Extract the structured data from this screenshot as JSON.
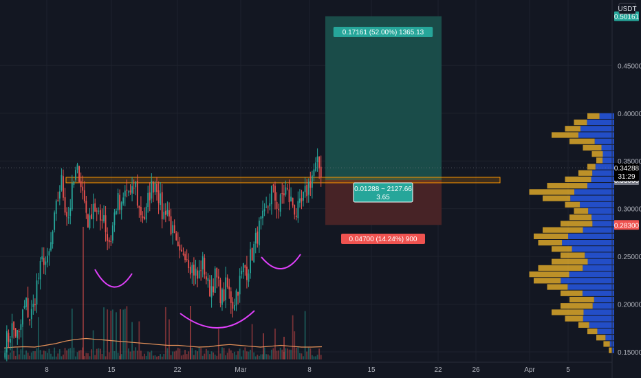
{
  "colors": {
    "background": "#131722",
    "grid": "#1e222d",
    "up": "#26a69a",
    "down": "#ef5350",
    "profit_zone": "#1a4f4c",
    "loss_zone": "#4a2427",
    "neckline": "#ff9800",
    "pattern": "#e040fb",
    "volume_ma": "#e8935a",
    "vp_up": "#2962ff",
    "vp_down": "#e9b02b",
    "price_tag": "#26a69a",
    "loss_tag": "#ef5350"
  },
  "header": {
    "currency": "USDT"
  },
  "chart_data": {
    "type": "candlestick",
    "title": "",
    "xlabel": "",
    "ylabel": "",
    "x_tick_labels": [
      "8",
      "15",
      "22",
      "Mar",
      "8",
      "15",
      "22",
      "26",
      "Apr",
      "5"
    ],
    "y_tick_labels": [
      "0.15000",
      "0.20000",
      "0.25000",
      "0.30000",
      "0.35000",
      "0.40000",
      "0.45000"
    ],
    "ylim": [
      0.14,
      0.53
    ],
    "grid": true,
    "close_path": [
      0.16,
      0.165,
      0.175,
      0.17,
      0.165,
      0.19,
      0.2,
      0.185,
      0.195,
      0.22,
      0.235,
      0.25,
      0.24,
      0.26,
      0.285,
      0.31,
      0.33,
      0.305,
      0.29,
      0.315,
      0.335,
      0.34,
      0.32,
      0.3,
      0.28,
      0.31,
      0.295,
      0.285,
      0.3,
      0.27,
      0.265,
      0.29,
      0.31,
      0.295,
      0.315,
      0.32,
      0.31,
      0.33,
      0.3,
      0.295,
      0.29,
      0.315,
      0.325,
      0.33,
      0.31,
      0.29,
      0.305,
      0.285,
      0.27,
      0.255,
      0.245,
      0.26,
      0.25,
      0.24,
      0.235,
      0.225,
      0.245,
      0.235,
      0.215,
      0.22,
      0.23,
      0.215,
      0.205,
      0.22,
      0.21,
      0.2,
      0.215,
      0.225,
      0.24,
      0.235,
      0.25,
      0.26,
      0.275,
      0.285,
      0.29,
      0.305,
      0.32,
      0.31,
      0.3,
      0.315,
      0.32,
      0.31,
      0.305,
      0.295,
      0.3,
      0.31,
      0.32,
      0.33,
      0.34,
      0.345,
      0.34
    ],
    "current_price": "0.34288",
    "countdown": "31:29",
    "target_price": "0.50161",
    "entry_price": "0.33000",
    "stop_price": "0.28300",
    "profit_label": "0.17161 (52.00%) 1365.13",
    "loss_label": "0.04700 (14.24%) 900",
    "center_label_line1": "0.01288 ~ 2127.66",
    "center_label_line2": "3.65",
    "neckline_price": 0.33,
    "volume_ma_path": [
      0.35,
      0.4,
      0.42,
      0.4,
      0.5,
      0.6,
      0.75,
      0.85,
      0.9,
      0.85,
      0.8,
      0.75,
      0.7,
      0.65,
      0.6,
      0.55,
      0.5,
      0.5,
      0.45,
      0.4,
      0.42,
      0.5,
      0.55,
      0.5,
      0.45,
      0.4,
      0.45,
      0.5,
      0.45,
      0.4,
      0.4,
      0.42
    ],
    "volume_profile": [
      0.3,
      0.45,
      0.55,
      0.7,
      0.5,
      0.35,
      0.25,
      0.2,
      0.3,
      0.4,
      0.55,
      0.75,
      0.95,
      0.8,
      0.55,
      0.45,
      0.5,
      0.6,
      0.8,
      0.9,
      0.85,
      0.7,
      0.6,
      0.7,
      0.85,
      0.95,
      0.9,
      0.75,
      0.6,
      0.5,
      0.6,
      0.7,
      0.55,
      0.4,
      0.3,
      0.2,
      0.12,
      0.06
    ]
  }
}
